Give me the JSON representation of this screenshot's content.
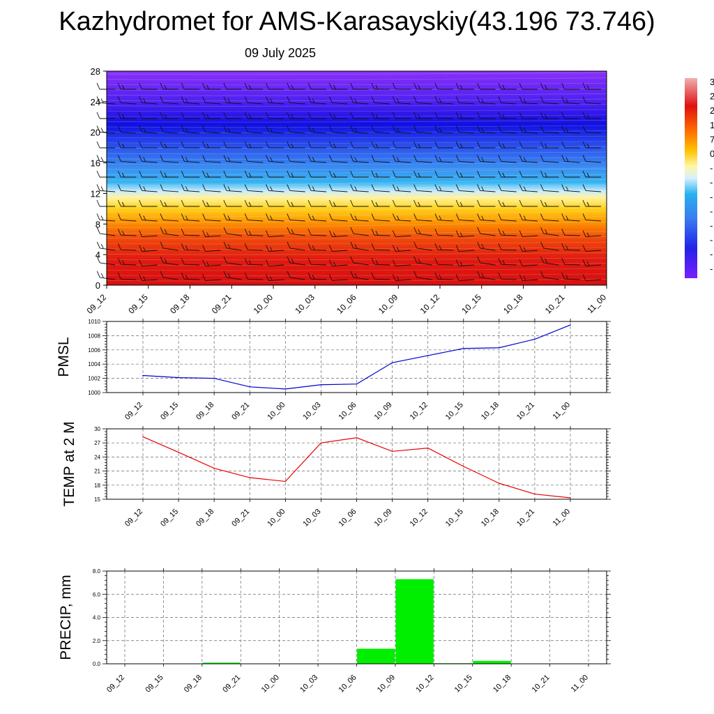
{
  "header": {
    "title": "Kazhydromet for AMS-Karasayskiy(43.196 73.746)",
    "date": "09 July 2025"
  },
  "colors": {
    "pmsl_line": "#0000cc",
    "temp_line": "#e60000",
    "precip_bar": "#00ee00"
  },
  "chart_data": [
    {
      "type": "heatmap",
      "title": "",
      "x_ticks": [
        "09_12",
        "09_15",
        "09_18",
        "09_21",
        "10_00",
        "10_03",
        "10_06",
        "10_09",
        "10_12",
        "10_15",
        "10_18",
        "10_21",
        "11_00"
      ],
      "y_ticks": [
        "0",
        "4",
        "8",
        "12",
        "16",
        "20",
        "24",
        "28"
      ],
      "ylim": [
        0,
        28
      ],
      "overlay": "wind barbs",
      "colorbar_labels": [
        "3",
        "2",
        "2",
        "1",
        "7",
        "0",
        "-",
        "-",
        "-",
        "-",
        "-",
        "-",
        "-",
        "-"
      ]
    },
    {
      "type": "line",
      "ylabel": "PMSL",
      "x": [
        "09_12",
        "09_15",
        "09_18",
        "09_21",
        "10_00",
        "10_03",
        "10_06",
        "10_09",
        "10_12",
        "10_15",
        "10_18",
        "10_21",
        "11_00"
      ],
      "values": [
        1002.4,
        1002.1,
        1002.0,
        1000.8,
        1000.5,
        1001.1,
        1001.2,
        1004.2,
        1005.2,
        1006.2,
        1006.3,
        1007.5,
        1009.5
      ],
      "ylim": [
        1000,
        1010
      ],
      "y_ticks": [
        "1000",
        "1002",
        "1004",
        "1006",
        "1008",
        "1010"
      ],
      "grid": true
    },
    {
      "type": "line",
      "ylabel": "TEMP at 2 M",
      "x": [
        "09_12",
        "09_15",
        "09_18",
        "09_21",
        "10_00",
        "10_03",
        "10_06",
        "10_09",
        "10_12",
        "10_15",
        "10_18",
        "10_21",
        "11_00"
      ],
      "values": [
        28.3,
        25.0,
        21.6,
        19.6,
        18.8,
        27.0,
        28.1,
        25.2,
        25.9,
        22.0,
        18.4,
        16.1,
        15.3
      ],
      "ylim": [
        15,
        30
      ],
      "y_ticks": [
        "15",
        "18",
        "21",
        "24",
        "27",
        "30"
      ],
      "grid": true
    },
    {
      "type": "bar",
      "ylabel": "PRECIP, mm",
      "categories": [
        "09_12",
        "09_15",
        "09_18",
        "09_21",
        "10_00",
        "10_03",
        "10_06",
        "10_09",
        "10_12",
        "10_15",
        "10_18",
        "10_21",
        "11_00"
      ],
      "values": [
        0.0,
        0.0,
        0.1,
        0.0,
        0.0,
        0.0,
        1.3,
        7.3,
        0.05,
        0.25,
        0.0,
        0.0,
        0.0
      ],
      "ylim": [
        0,
        8
      ],
      "y_ticks": [
        "0.0",
        "2.0",
        "4.0",
        "6.0",
        "8.0"
      ],
      "grid": true
    }
  ]
}
